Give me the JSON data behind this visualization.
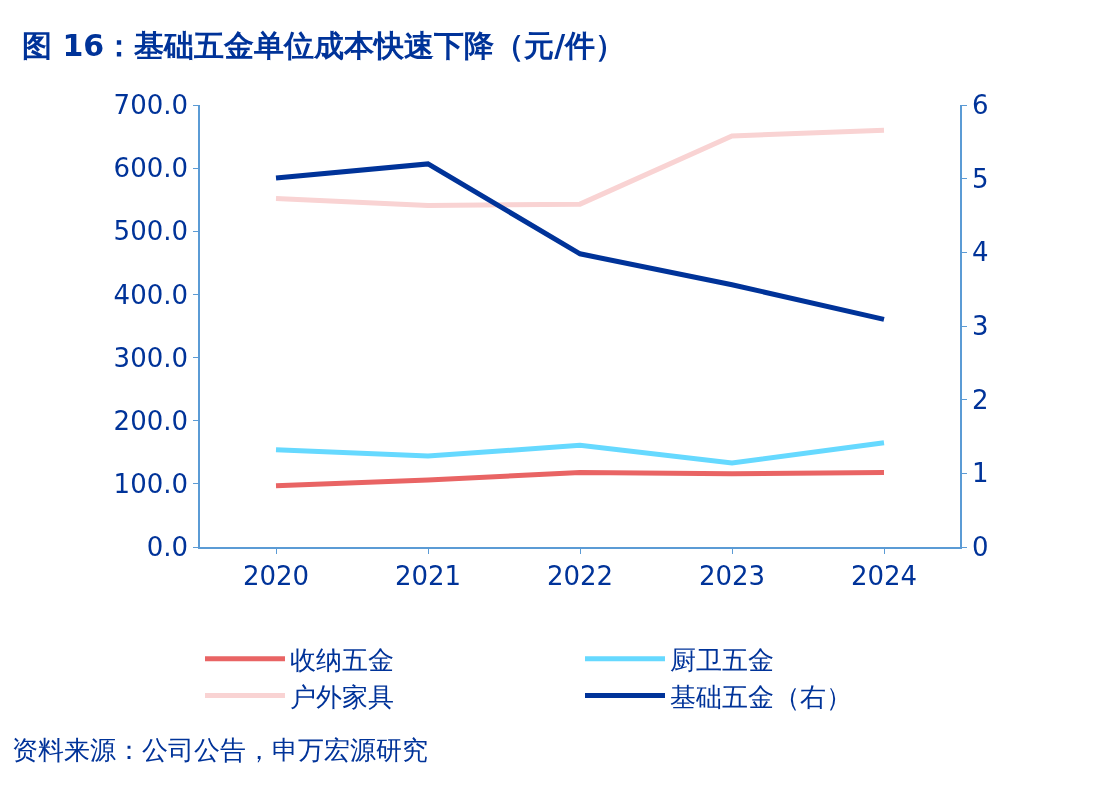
{
  "chart_data": {
    "type": "line",
    "title": "图 16：基础五金单位成本快速下降（元/件）",
    "categories": [
      "2020",
      "2021",
      "2022",
      "2023",
      "2024"
    ],
    "series": [
      {
        "name": "收纳五金",
        "color": "#e96464",
        "values": [
          97,
          106,
          118,
          116,
          118
        ]
      },
      {
        "name": "厨卫五金",
        "color": "#66d9ff",
        "values": [
          154,
          144,
          161,
          133,
          165
        ]
      },
      {
        "name": "户外家具",
        "color": "#f9d3d3",
        "values": [
          552,
          541,
          543,
          651,
          660
        ]
      },
      {
        "name": "基础五金（右）",
        "color": "#003399",
        "values": [
          5.01,
          5.2,
          3.98,
          3.56,
          3.09
        ],
        "axis": "y2"
      }
    ],
    "ylim": [
      0,
      700
    ],
    "yticks": [
      {
        "value": 0,
        "label": "0.0"
      },
      {
        "value": 100,
        "label": "100.0"
      },
      {
        "value": 200,
        "label": "200.0"
      },
      {
        "value": 300,
        "label": "300.0"
      },
      {
        "value": 400,
        "label": "400.0"
      },
      {
        "value": 500,
        "label": "500.0"
      },
      {
        "value": 600,
        "label": "600.0"
      },
      {
        "value": 700,
        "label": "700.0"
      }
    ],
    "y2lim": [
      0,
      6
    ],
    "y2ticks": [
      0,
      1,
      2,
      3,
      4,
      5,
      6
    ],
    "legend": "bottom",
    "marker": "none",
    "line_style": "solid",
    "annotations": [
      "资料来源：公司公告，申万宏源研究"
    ]
  }
}
